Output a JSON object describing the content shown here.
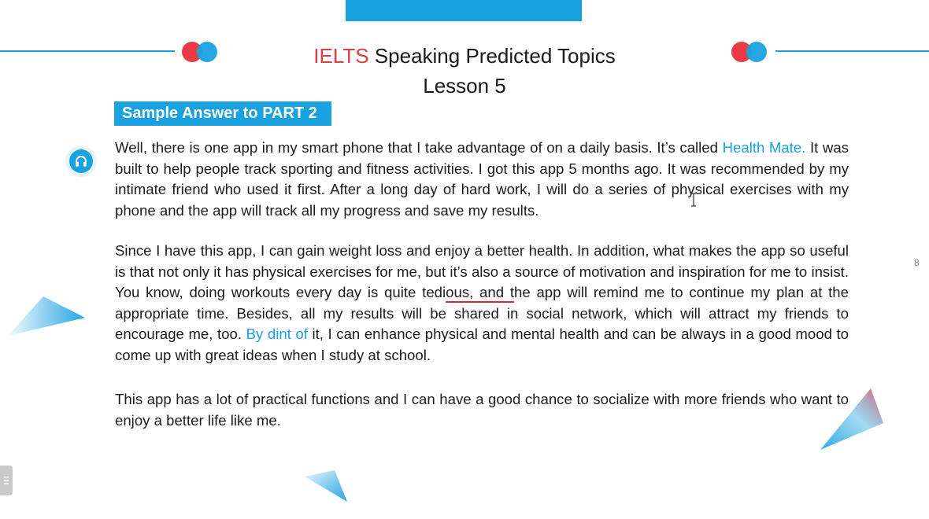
{
  "header": {
    "title_brand": "IELTS",
    "title_rest": " Speaking Predicted Topics",
    "subtitle": "Lesson 5"
  },
  "section": {
    "badge_label": "Sample Answer to PART 2"
  },
  "paragraph1": {
    "part1": "Well, there is one app in my smart phone that I take advantage of on a daily basis. It’s called ",
    "highlight": "Health Mate.",
    "part2": " It was built to help people track sporting and fitness activities. I got this app 5 months ago. It was recommended by my intimate friend who used it first. After a long day of hard work, I will do a series of physical exercises with my phone and the app will track all my progress and save my  results."
  },
  "paragraph2": {
    "part1": "Since I have this app, I can gain weight loss and enjoy a better health. In addition, what makes the app so useful is that not only it has physical exercises for me, but it’s also a source of motivation and inspiration for me to insist. You know, doing workouts every day is quite tedi",
    "underlined": "ous, and t",
    "part2": "he app will remind me to continue my plan at the appropriate time. Besides, all my results will be shared in social network, which will attract my friends to encourage me, too. ",
    "highlight": "By dint of",
    "part3": " it, I can enhance physical and mental health and can be always in a good mood to come up with great ideas when I study at school."
  },
  "paragraph3": {
    "text": "This app has a lot of practical functions and I can have a good chance to socialize with more friends who want to enjoy a better life like me."
  },
  "page_number": "8",
  "icons": {
    "audio": "headphones-icon",
    "side_tab": "menu-handle-icon"
  },
  "colors": {
    "accent_blue": "#1aa1e0",
    "accent_red": "#e43b40",
    "text": "#1c1c1c"
  }
}
